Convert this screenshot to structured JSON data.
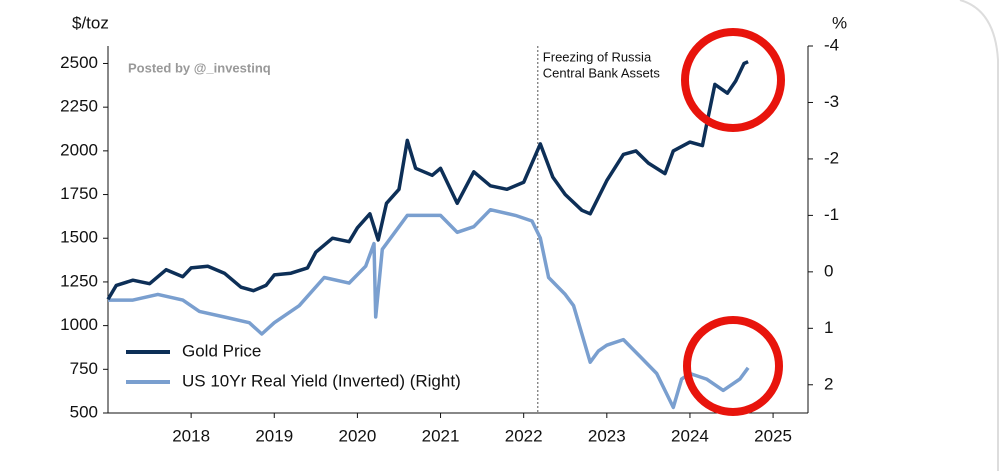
{
  "chart_data": {
    "type": "line",
    "y_label": "$/toz",
    "y2_label": "%",
    "watermark": "Posted by @_investinq",
    "annotation": {
      "lines": [
        "Freezing of Russia",
        "Central Bank Assets"
      ],
      "x": 2022.17
    },
    "xlim": [
      2017,
      2025.42
    ],
    "xticks": [
      2018,
      2019,
      2020,
      2021,
      2022,
      2023,
      2024,
      2025
    ],
    "ylim": [
      500,
      2600
    ],
    "yticks": [
      500,
      750,
      1000,
      1250,
      1500,
      1750,
      2000,
      2250,
      2500
    ],
    "y2lim": [
      2.5,
      -4
    ],
    "y2ticks": [
      -4,
      -3,
      -2,
      -1,
      0,
      1,
      2
    ],
    "legend": "lower left",
    "series": [
      {
        "name": "Gold Price",
        "color": "#0d2f57",
        "x": [
          2017.0,
          2017.1,
          2017.3,
          2017.5,
          2017.7,
          2017.9,
          2018.0,
          2018.2,
          2018.4,
          2018.6,
          2018.75,
          2018.9,
          2019.0,
          2019.2,
          2019.4,
          2019.5,
          2019.7,
          2019.9,
          2020.0,
          2020.15,
          2020.25,
          2020.35,
          2020.5,
          2020.6,
          2020.7,
          2020.9,
          2021.0,
          2021.2,
          2021.4,
          2021.6,
          2021.8,
          2022.0,
          2022.2,
          2022.35,
          2022.5,
          2022.7,
          2022.8,
          2023.0,
          2023.2,
          2023.35,
          2023.5,
          2023.7,
          2023.8,
          2024.0,
          2024.15,
          2024.2,
          2024.3,
          2024.45,
          2024.55,
          2024.65,
          2024.7
        ],
        "values": [
          1150,
          1230,
          1260,
          1240,
          1320,
          1280,
          1330,
          1340,
          1300,
          1220,
          1200,
          1230,
          1290,
          1300,
          1330,
          1420,
          1500,
          1480,
          1560,
          1640,
          1490,
          1700,
          1780,
          2060,
          1900,
          1860,
          1900,
          1700,
          1880,
          1800,
          1780,
          1820,
          2040,
          1850,
          1750,
          1660,
          1640,
          1830,
          1980,
          2000,
          1930,
          1870,
          2000,
          2050,
          2030,
          2150,
          2380,
          2330,
          2400,
          2500,
          2510
        ]
      },
      {
        "name": "US 10Yr Real Yield (Inverted) (Right)",
        "color": "#7a9fcf",
        "axis": "y2",
        "x": [
          2017.0,
          2017.3,
          2017.6,
          2017.9,
          2018.1,
          2018.4,
          2018.7,
          2018.85,
          2019.0,
          2019.3,
          2019.6,
          2019.9,
          2020.1,
          2020.2,
          2020.22,
          2020.3,
          2020.5,
          2020.6,
          2021.0,
          2021.2,
          2021.4,
          2021.6,
          2021.9,
          2022.1,
          2022.2,
          2022.3,
          2022.5,
          2022.6,
          2022.8,
          2022.9,
          2023.0,
          2023.2,
          2023.4,
          2023.6,
          2023.8,
          2023.9,
          2024.0,
          2024.2,
          2024.4,
          2024.6,
          2024.7
        ],
        "values": [
          0.5,
          0.5,
          0.4,
          0.5,
          0.7,
          0.8,
          0.9,
          1.1,
          0.9,
          0.6,
          0.1,
          0.2,
          -0.1,
          -0.5,
          0.8,
          -0.4,
          -0.8,
          -1.0,
          -1.0,
          -0.7,
          -0.8,
          -1.1,
          -1.0,
          -0.9,
          -0.6,
          0.1,
          0.4,
          0.6,
          1.6,
          1.4,
          1.3,
          1.2,
          1.5,
          1.8,
          2.4,
          1.9,
          1.8,
          1.9,
          2.1,
          1.9,
          1.7
        ]
      }
    ]
  }
}
